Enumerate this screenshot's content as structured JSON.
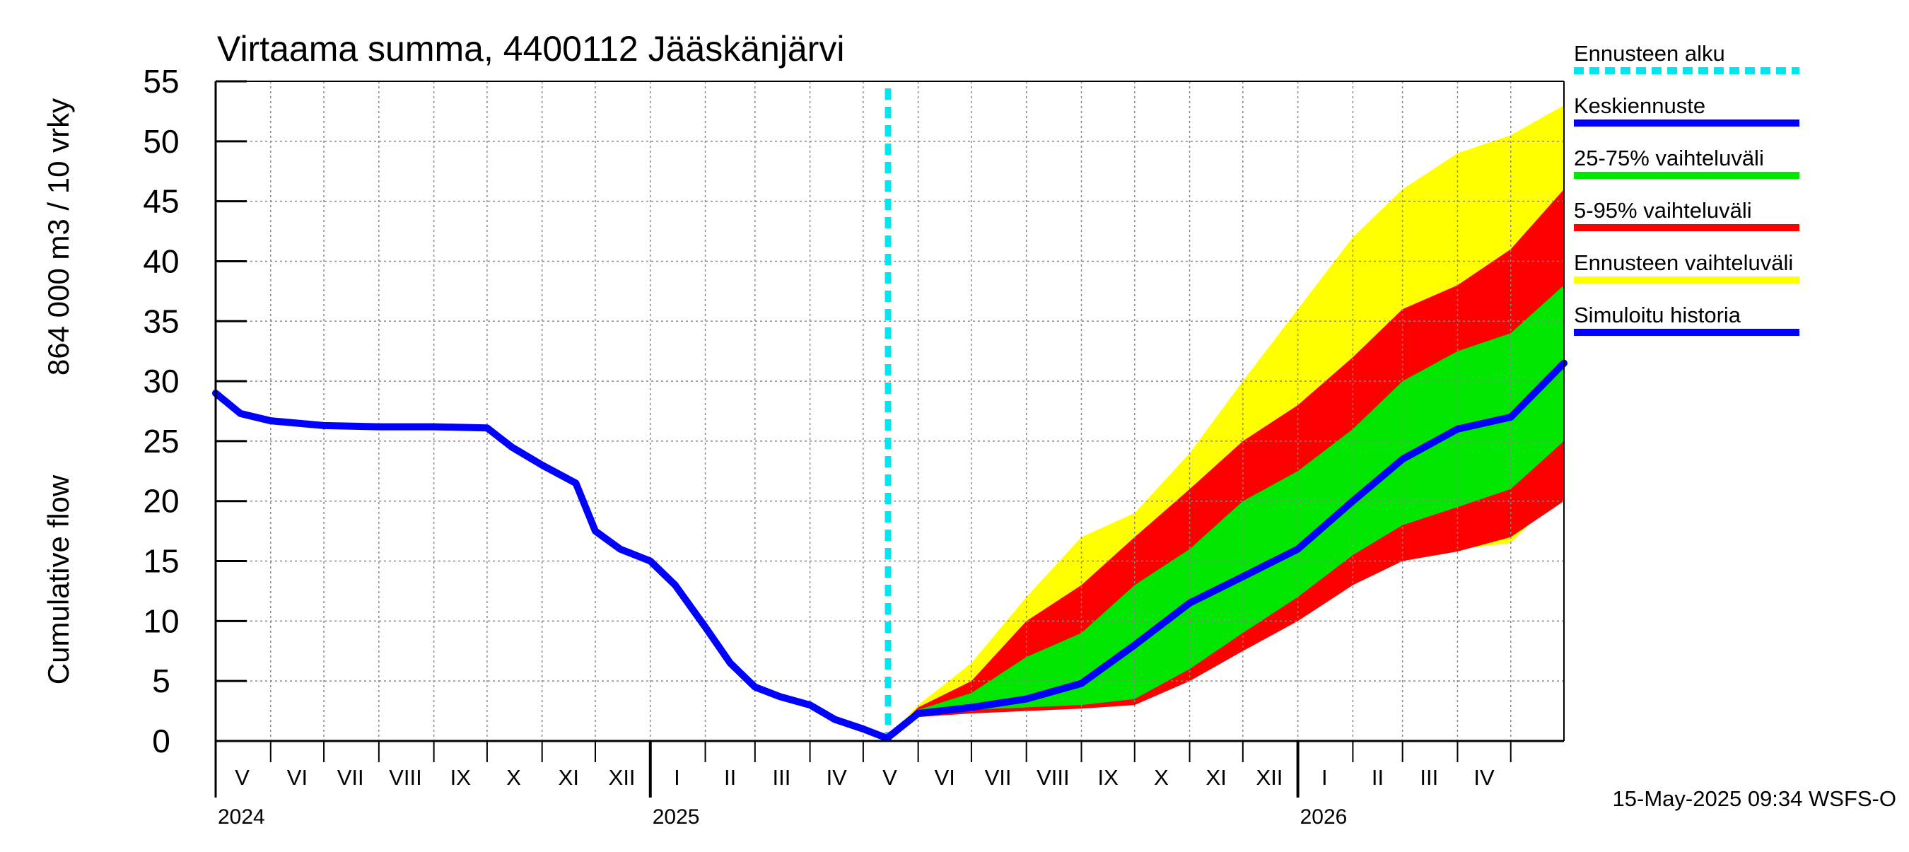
{
  "chart_data": {
    "type": "area",
    "title": "Virtaama summa, 4400112 Jääskänjärvi",
    "ylabel_lines": [
      "Cumulative flow",
      "864 000 m3 / 10 vrky"
    ],
    "ylim": [
      0,
      55
    ],
    "yticks": [
      0,
      5,
      10,
      15,
      20,
      25,
      30,
      35,
      40,
      45,
      50,
      55
    ],
    "xlim": [
      "2024-05-01",
      "2026-05-31"
    ],
    "grid": true,
    "legend_position": "right",
    "month_labels": [
      {
        "label": "V",
        "date": "2024-05-16"
      },
      {
        "label": "VI",
        "date": "2024-06-16"
      },
      {
        "label": "VII",
        "date": "2024-07-16"
      },
      {
        "label": "VIII",
        "date": "2024-08-16"
      },
      {
        "label": "IX",
        "date": "2024-09-16"
      },
      {
        "label": "X",
        "date": "2024-10-16"
      },
      {
        "label": "XI",
        "date": "2024-11-16"
      },
      {
        "label": "XII",
        "date": "2024-12-16"
      },
      {
        "label": "I",
        "date": "2025-01-16"
      },
      {
        "label": "II",
        "date": "2025-02-15"
      },
      {
        "label": "III",
        "date": "2025-03-16"
      },
      {
        "label": "IV",
        "date": "2025-04-16"
      },
      {
        "label": "V",
        "date": "2025-05-16"
      },
      {
        "label": "VI",
        "date": "2025-06-16"
      },
      {
        "label": "VII",
        "date": "2025-07-16"
      },
      {
        "label": "VIII",
        "date": "2025-08-16"
      },
      {
        "label": "IX",
        "date": "2025-09-16"
      },
      {
        "label": "X",
        "date": "2025-10-16"
      },
      {
        "label": "XI",
        "date": "2025-11-16"
      },
      {
        "label": "XII",
        "date": "2025-12-16"
      },
      {
        "label": "I",
        "date": "2026-01-16"
      },
      {
        "label": "II",
        "date": "2026-02-15"
      },
      {
        "label": "III",
        "date": "2026-03-16"
      },
      {
        "label": "IV",
        "date": "2026-04-16"
      }
    ],
    "year_labels": [
      {
        "label": "2024",
        "date": "2024-05-01"
      },
      {
        "label": "2025",
        "date": "2025-01-01"
      },
      {
        "label": "2026",
        "date": "2026-01-01"
      }
    ],
    "forecast_start": "2025-05-15",
    "series": [
      {
        "name": "Ennusteen vaihteluväli",
        "kind": "band",
        "color": "#ffff00",
        "x": [
          "2025-05-15",
          "2025-06-01",
          "2025-07-01",
          "2025-08-01",
          "2025-09-01",
          "2025-10-01",
          "2025-11-01",
          "2025-12-01",
          "2026-01-01",
          "2026-02-01",
          "2026-03-01",
          "2026-04-01",
          "2026-05-01",
          "2026-05-31"
        ],
        "upper": [
          0.3,
          3.0,
          6.5,
          12.0,
          17.0,
          19.0,
          24.0,
          30.0,
          36.0,
          42.0,
          46.0,
          49.0,
          50.5,
          53.0
        ],
        "lower": [
          0.3,
          2.2,
          2.5,
          2.7,
          3.0,
          3.5,
          6.0,
          8.0,
          11.0,
          14.0,
          15.0,
          16.0,
          16.5,
          21.0
        ]
      },
      {
        "name": "5-95% vaihteluväli",
        "kind": "band",
        "color": "#ff0000",
        "x": [
          "2025-05-15",
          "2025-06-01",
          "2025-07-01",
          "2025-08-01",
          "2025-09-01",
          "2025-10-01",
          "2025-11-01",
          "2025-12-01",
          "2026-01-01",
          "2026-02-01",
          "2026-03-01",
          "2026-04-01",
          "2026-05-01",
          "2026-05-31"
        ],
        "upper": [
          0.3,
          2.8,
          5.0,
          10.0,
          13.0,
          17.0,
          21.0,
          25.0,
          28.0,
          32.0,
          36.0,
          38.0,
          41.0,
          46.0
        ],
        "lower": [
          0.3,
          2.0,
          2.3,
          2.5,
          2.7,
          3.0,
          5.0,
          7.5,
          10.0,
          13.0,
          15.0,
          15.8,
          17.0,
          20.0
        ]
      },
      {
        "name": "25-75% vaihteluväli",
        "kind": "band",
        "color": "#00e600",
        "x": [
          "2025-05-15",
          "2025-06-01",
          "2025-07-01",
          "2025-08-01",
          "2025-09-01",
          "2025-10-01",
          "2025-11-01",
          "2025-12-01",
          "2026-01-01",
          "2026-02-01",
          "2026-03-01",
          "2026-04-01",
          "2026-05-01",
          "2026-05-31"
        ],
        "upper": [
          0.3,
          2.6,
          4.0,
          7.0,
          9.0,
          13.0,
          16.0,
          20.0,
          22.5,
          26.0,
          30.0,
          32.5,
          34.0,
          38.0
        ],
        "lower": [
          0.3,
          2.3,
          2.6,
          2.8,
          3.0,
          3.5,
          6.0,
          9.0,
          12.0,
          15.5,
          18.0,
          19.5,
          21.0,
          25.0
        ]
      },
      {
        "name": "Keskiennuste",
        "kind": "line",
        "color": "#0000ff",
        "x": [
          "2025-05-15",
          "2025-06-01",
          "2025-07-01",
          "2025-08-01",
          "2025-09-01",
          "2025-10-01",
          "2025-11-01",
          "2025-12-01",
          "2026-01-01",
          "2026-02-01",
          "2026-03-01",
          "2026-04-01",
          "2026-05-01",
          "2026-05-31"
        ],
        "values": [
          0.3,
          2.3,
          2.8,
          3.5,
          4.8,
          8.0,
          11.5,
          13.7,
          16.0,
          20.0,
          23.5,
          26.0,
          27.0,
          31.5
        ]
      },
      {
        "name": "Simuloitu historia",
        "kind": "line",
        "color": "#0000ff",
        "x": [
          "2024-05-01",
          "2024-05-15",
          "2024-06-01",
          "2024-07-01",
          "2024-08-01",
          "2024-09-01",
          "2024-10-01",
          "2024-10-15",
          "2024-11-01",
          "2024-11-20",
          "2024-12-01",
          "2024-12-15",
          "2025-01-01",
          "2025-01-15",
          "2025-02-01",
          "2025-02-15",
          "2025-03-01",
          "2025-03-15",
          "2025-04-01",
          "2025-04-15",
          "2025-05-01",
          "2025-05-15"
        ],
        "values": [
          29.0,
          27.3,
          26.7,
          26.3,
          26.2,
          26.2,
          26.1,
          24.5,
          23.0,
          21.5,
          17.5,
          16.0,
          15.0,
          13.0,
          9.5,
          6.5,
          4.5,
          3.7,
          3.0,
          1.8,
          1.0,
          0.2
        ]
      }
    ],
    "legend": [
      {
        "label": "Ennusteen alku",
        "color": "#00e5ee",
        "style": "dashed"
      },
      {
        "label": "Keskiennuste",
        "color": "#0000ff",
        "style": "solid"
      },
      {
        "label": "25-75% vaihteluväli",
        "color": "#00e600",
        "style": "solid"
      },
      {
        "label": "5-95% vaihteluväli",
        "color": "#ff0000",
        "style": "solid"
      },
      {
        "label": "Ennusteen vaihteluväli",
        "color": "#ffff00",
        "style": "solid"
      },
      {
        "label": "Simuloitu historia",
        "color": "#0000ff",
        "style": "solid"
      }
    ],
    "footer": "15-May-2025 09:34 WSFS-O"
  }
}
